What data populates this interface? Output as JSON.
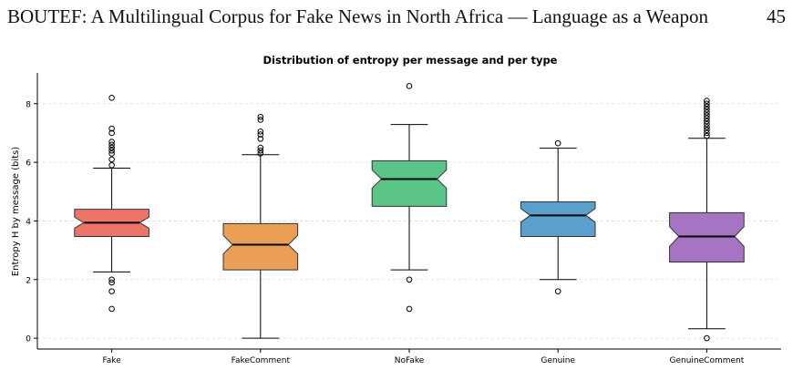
{
  "header": {
    "title": "BOUTEF: A Multilingual Corpus for Fake News in North Africa — Language as a Weapon",
    "page": "45"
  },
  "chart_data": {
    "type": "box",
    "title": "Distribution of entropy per message and per type",
    "y_label": "Entropy H by message (bits)",
    "ylim": [
      -0.37,
      9.05
    ],
    "yticks": [
      0,
      2,
      4,
      6,
      8
    ],
    "grid": true,
    "notch": true,
    "boxes": [
      {
        "name": "Fake",
        "color": "#ec7468",
        "whislo": 2.26,
        "q1": 3.47,
        "median": 3.94,
        "q3": 4.4,
        "whishi": 5.8,
        "fliers": [
          8.2,
          7.15,
          7.0,
          6.7,
          6.6,
          6.5,
          6.4,
          6.3,
          6.1,
          5.9,
          2.0,
          1.9,
          1.6,
          1.0
        ]
      },
      {
        "name": "FakeComment",
        "color": "#eb9e56",
        "whislo": 0.0,
        "q1": 2.33,
        "median": 3.19,
        "q3": 3.91,
        "whishi": 6.26,
        "fliers": [
          7.55,
          7.45,
          7.05,
          6.95,
          6.8,
          6.5,
          6.4,
          6.3
        ]
      },
      {
        "name": "NoFake",
        "color": "#5bc487",
        "whislo": 2.33,
        "q1": 4.5,
        "median": 5.43,
        "q3": 6.05,
        "whishi": 7.29,
        "fliers": [
          8.6,
          2.0,
          1.0
        ]
      },
      {
        "name": "Genuine",
        "color": "#5b9fcc",
        "whislo": 2.0,
        "q1": 3.47,
        "median": 4.19,
        "q3": 4.65,
        "whishi": 6.48,
        "fliers": [
          6.65,
          1.6
        ]
      },
      {
        "name": "GenuineComment",
        "color": "#a674c2",
        "whislo": 0.32,
        "q1": 2.6,
        "median": 3.47,
        "q3": 4.28,
        "whishi": 6.82,
        "fliers": [
          8.1,
          8.0,
          7.9,
          7.8,
          7.7,
          7.6,
          7.5,
          7.4,
          7.3,
          7.2,
          7.1,
          7.0,
          6.9,
          0.0
        ]
      }
    ]
  }
}
